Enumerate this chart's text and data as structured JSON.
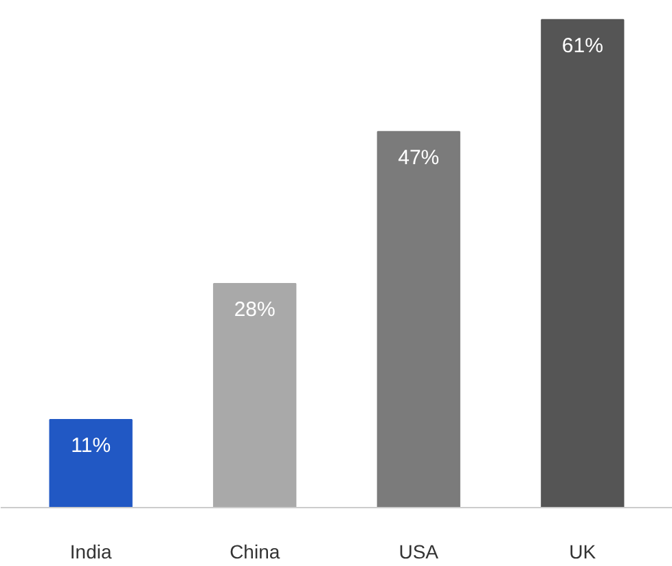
{
  "chart_data": {
    "type": "bar",
    "categories": [
      "India",
      "China",
      "USA",
      "UK"
    ],
    "values": [
      11,
      28,
      47,
      61
    ],
    "colors": [
      "#2158c4",
      "#a9a9a9",
      "#7b7b7b",
      "#555555"
    ],
    "value_labels": [
      "11%",
      "28%",
      "47%",
      "61%"
    ]
  }
}
